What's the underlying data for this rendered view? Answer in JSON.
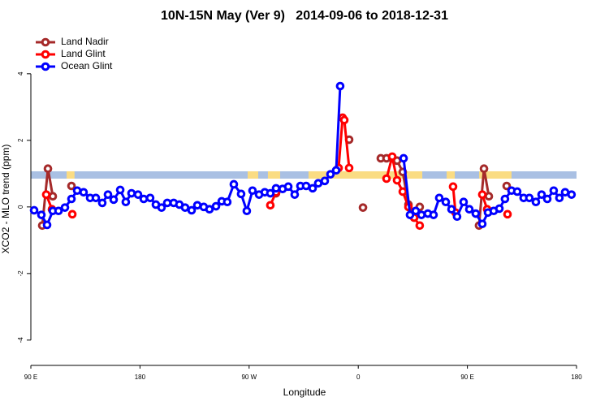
{
  "chart_data": {
    "type": "line",
    "title": "10N-15N May (Ver 9)   2014-09-06 to 2018-12-31",
    "x_label": "Longitude",
    "y_label": "XCO2 - MLO trend (ppm)",
    "xlim": [
      90,
      540
    ],
    "xticks": [
      {
        "value": 90,
        "label": "90 E"
      },
      180,
      {
        "value": 270,
        "label": "90 W"
      },
      {
        "value": 360,
        "label": "0"
      },
      {
        "value": 450,
        "label": "90 E"
      },
      {
        "value": 540,
        "label": "180"
      }
    ],
    "ylim": [
      -4.76,
      5.24
    ],
    "yticks": [
      -4,
      -2,
      0,
      2,
      4
    ],
    "legend": "top-left",
    "band": {
      "ylim": [
        0.85,
        1.07
      ],
      "color": "#a9c0e3"
    },
    "land_color": "#fadc83",
    "land": [
      [
        119.5,
        126
      ],
      [
        268.8,
        277.5
      ],
      [
        285.5,
        295.6
      ],
      [
        319,
        412.8
      ],
      [
        432.9,
        439.6
      ],
      [
        459.7,
        486.4
      ]
    ],
    "series": [
      {
        "name": "Land Nadir",
        "color": "#a52a2a",
        "x": [
          99.4,
          104.1,
          108.1,
          null,
          123.5,
          null,
          292.2,
          null,
          352.5,
          null,
          363.9,
          null,
          378.6,
          383.3,
          388.0,
          392.0,
          396.7,
          401.4,
          406.1,
          410.7,
          null,
          459.6,
          463.7,
          467.7,
          null,
          482.4
        ],
        "values": [
          -0.56,
          1.15,
          0.32,
          null,
          0.63,
          null,
          0.41,
          null,
          2.02,
          null,
          -0.02,
          null,
          1.46,
          1.46,
          1.46,
          1.39,
          1.05,
          0.07,
          -0.32,
          0,
          null,
          -0.56,
          1.15,
          0.32,
          null,
          0.63
        ]
      },
      {
        "name": "Land Glint",
        "color": "#ff0000",
        "x": [
          102.7,
          107.4,
          null,
          124.2,
          null,
          287.5,
          292.2,
          null,
          343.8,
          347.1,
          348.5,
          352.5,
          null,
          383.3,
          388.0,
          392.0,
          396.7,
          401.4,
          406.1,
          410.7,
          null,
          438.2,
          440.2,
          null,
          462.3,
          466.3,
          null,
          483.1
        ],
        "values": [
          0.37,
          -0.07,
          null,
          -0.22,
          null,
          0.05,
          0.44,
          null,
          1.17,
          2.68,
          2.61,
          1.17,
          null,
          0.85,
          1.51,
          0.8,
          0.46,
          0,
          -0.32,
          -0.56,
          null,
          0.61,
          -0.17,
          null,
          0.37,
          -0.07,
          null,
          -0.22
        ]
      },
      {
        "name": "Ocean Glint",
        "color": "#0000ff",
        "x": [
          92.7,
          98.7,
          103.4,
          108.1,
          112.8,
          118.1,
          123.5,
          128.2,
          133.5,
          138.9,
          143.6,
          148.9,
          153.6,
          158.3,
          163.7,
          168.3,
          173.0,
          178.4,
          183.1,
          188.4,
          193.1,
          197.8,
          202.5,
          207.8,
          212.5,
          217.2,
          222.6,
          227.3,
          232.6,
          237.3,
          242.7,
          247.4,
          252.0,
          257.4,
          263.4,
          268.1,
          272.8,
          278.2,
          282.9,
          287.5,
          292.2,
          297.6,
          302.3,
          307.6,
          312.3,
          317.0,
          322.4,
          327.0,
          332.4,
          337.1,
          341.8,
          345.1,
          null,
          397.4,
          402.7,
          407.4,
          412.1,
          417.4,
          422.1,
          426.8,
          432.2,
          436.9,
          441.5,
          446.9,
          451.6,
          456.9,
          462.3,
          467.0,
          471.7,
          476.4,
          481.0,
          486.4,
          491.1,
          496.4,
          501.1,
          506.5,
          511.2,
          515.9,
          521.2,
          525.9,
          530.6,
          535.9
        ],
        "values": [
          -0.1,
          -0.24,
          -0.54,
          -0.12,
          -0.12,
          -0.02,
          0.24,
          0.49,
          0.44,
          0.27,
          0.27,
          0.12,
          0.37,
          0.22,
          0.51,
          0.15,
          0.41,
          0.37,
          0.24,
          0.27,
          0.07,
          -0.02,
          0.12,
          0.12,
          0.07,
          -0.02,
          -0.1,
          0.05,
          0,
          -0.07,
          0.02,
          0.17,
          0.15,
          0.68,
          0.39,
          -0.12,
          0.49,
          0.37,
          0.44,
          0.41,
          0.56,
          0.54,
          0.61,
          0.37,
          0.63,
          0.63,
          0.56,
          0.71,
          0.78,
          0.98,
          1.1,
          3.63,
          null,
          1.46,
          -0.24,
          -0.12,
          -0.24,
          -0.2,
          -0.24,
          0.27,
          0.15,
          -0.07,
          -0.29,
          0.15,
          -0.07,
          -0.2,
          -0.51,
          -0.17,
          -0.12,
          -0.05,
          0.24,
          0.49,
          0.46,
          0.27,
          0.27,
          0.15,
          0.37,
          0.24,
          0.49,
          0.27,
          0.44,
          0.37
        ]
      }
    ]
  }
}
